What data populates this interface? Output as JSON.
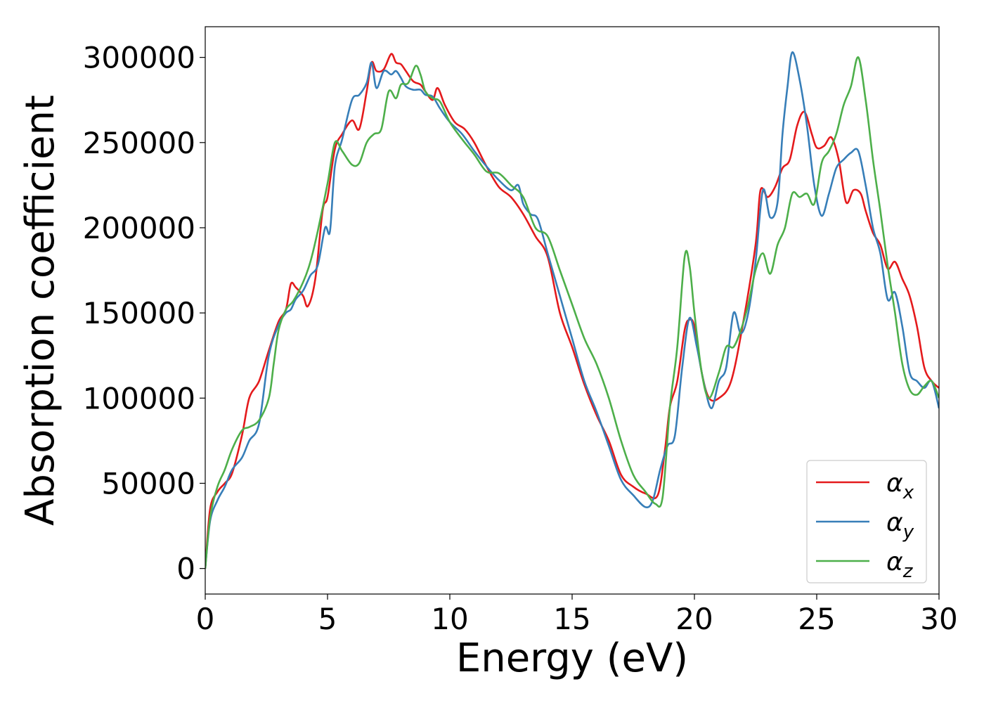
{
  "chart_data": {
    "type": "line",
    "title": "",
    "xlabel": "Energy (eV)",
    "ylabel": "Absorption coefficient",
    "xlim": [
      0,
      30
    ],
    "ylim": [
      -15000,
      318000
    ],
    "xticks": [
      0,
      5,
      10,
      15,
      20,
      25,
      30
    ],
    "yticks": [
      0,
      50000,
      100000,
      150000,
      200000,
      250000,
      300000
    ],
    "grid": false,
    "legend_position": "bottom-right",
    "series": [
      {
        "name": "αx",
        "label_base": "α",
        "label_sub": "x",
        "color": "#e41a1c",
        "x": [
          0,
          0.2,
          0.5,
          0.8,
          1.1,
          1.5,
          1.8,
          2.2,
          2.6,
          3.0,
          3.3,
          3.5,
          3.7,
          4.0,
          4.2,
          4.5,
          4.8,
          5.0,
          5.3,
          5.6,
          6.0,
          6.3,
          6.6,
          6.8,
          7.0,
          7.3,
          7.6,
          7.8,
          8.0,
          8.2,
          8.5,
          8.8,
          9.0,
          9.3,
          9.5,
          9.8,
          10.2,
          10.6,
          11.0,
          11.5,
          12.0,
          12.5,
          13.0,
          13.5,
          14.0,
          14.5,
          15.0,
          15.5,
          16.0,
          16.5,
          17.0,
          17.5,
          18.0,
          18.5,
          18.8,
          19.0,
          19.3,
          19.6,
          19.8,
          20.0,
          20.3,
          20.6,
          21.0,
          21.5,
          22.0,
          22.5,
          22.7,
          23.0,
          23.3,
          23.6,
          23.9,
          24.2,
          24.5,
          24.8,
          25.0,
          25.3,
          25.6,
          25.9,
          26.2,
          26.5,
          26.8,
          27.0,
          27.3,
          27.6,
          27.9,
          28.2,
          28.5,
          28.8,
          29.1,
          29.4,
          29.7,
          30.0
        ],
        "values": [
          0,
          35000,
          45000,
          50000,
          56000,
          78000,
          100000,
          110000,
          128000,
          145000,
          152000,
          167000,
          165000,
          160000,
          154000,
          170000,
          210000,
          218000,
          246000,
          255000,
          263000,
          258000,
          280000,
          297000,
          292000,
          293000,
          302000,
          297000,
          296000,
          292000,
          286000,
          284000,
          280000,
          275000,
          282000,
          272000,
          262000,
          258000,
          250000,
          236000,
          224000,
          218000,
          208000,
          195000,
          183000,
          150000,
          130000,
          108000,
          90000,
          75000,
          55000,
          48000,
          44000,
          43000,
          70000,
          95000,
          110000,
          140000,
          146000,
          142000,
          115000,
          100000,
          100000,
          110000,
          145000,
          190000,
          222000,
          218000,
          224000,
          235000,
          240000,
          260000,
          268000,
          255000,
          247000,
          248000,
          253000,
          240000,
          215000,
          222000,
          220000,
          210000,
          197000,
          190000,
          176000,
          180000,
          170000,
          160000,
          142000,
          118000,
          110000,
          106000
        ]
      },
      {
        "name": "αy",
        "label_base": "α",
        "label_sub": "y",
        "color": "#377eb8",
        "x": [
          0,
          0.2,
          0.5,
          0.8,
          1.1,
          1.5,
          1.8,
          2.2,
          2.6,
          3.0,
          3.3,
          3.5,
          3.7,
          4.0,
          4.3,
          4.6,
          4.9,
          5.1,
          5.3,
          5.6,
          6.0,
          6.3,
          6.6,
          6.8,
          7.0,
          7.3,
          7.6,
          7.8,
          8.0,
          8.2,
          8.5,
          8.8,
          9.0,
          9.3,
          9.6,
          10.0,
          10.5,
          11.0,
          11.5,
          12.0,
          12.5,
          12.8,
          13.0,
          13.3,
          13.6,
          14.0,
          14.5,
          15.0,
          15.5,
          16.0,
          16.5,
          17.0,
          17.5,
          18.0,
          18.3,
          18.6,
          18.9,
          19.2,
          19.5,
          19.8,
          20.1,
          20.4,
          20.7,
          21.0,
          21.3,
          21.6,
          21.9,
          22.2,
          22.5,
          22.8,
          23.1,
          23.4,
          23.6,
          23.8,
          24.0,
          24.3,
          24.6,
          24.9,
          25.2,
          25.5,
          25.8,
          26.1,
          26.4,
          26.7,
          27.0,
          27.3,
          27.6,
          27.9,
          28.2,
          28.5,
          28.8,
          29.1,
          29.4,
          29.7,
          30.0
        ],
        "values": [
          0,
          28000,
          40000,
          48000,
          58000,
          65000,
          75000,
          85000,
          125000,
          143000,
          150000,
          152000,
          158000,
          163000,
          172000,
          178000,
          200000,
          198000,
          236000,
          252000,
          275000,
          278000,
          285000,
          297000,
          282000,
          292000,
          290000,
          292000,
          288000,
          283000,
          281000,
          281000,
          278000,
          277000,
          270000,
          262000,
          255000,
          245000,
          236000,
          228000,
          222000,
          225000,
          214000,
          208000,
          205000,
          185000,
          160000,
          135000,
          110000,
          92000,
          72000,
          52000,
          43000,
          36000,
          40000,
          58000,
          72000,
          78000,
          118000,
          147000,
          130000,
          108000,
          94000,
          110000,
          118000,
          150000,
          138000,
          150000,
          180000,
          222000,
          206000,
          215000,
          255000,
          282000,
          303000,
          287000,
          260000,
          225000,
          207000,
          220000,
          235000,
          240000,
          244000,
          245000,
          225000,
          200000,
          185000,
          158000,
          162000,
          142000,
          115000,
          110000,
          106000,
          110000,
          94000
        ]
      },
      {
        "name": "αz",
        "label_base": "α",
        "label_sub": "z",
        "color": "#4daf4a",
        "x": [
          0,
          0.2,
          0.5,
          0.8,
          1.1,
          1.5,
          1.8,
          2.2,
          2.6,
          2.8,
          3.0,
          3.3,
          3.6,
          4.0,
          4.3,
          4.6,
          5.0,
          5.3,
          5.6,
          6.0,
          6.3,
          6.6,
          6.9,
          7.2,
          7.5,
          7.8,
          8.0,
          8.3,
          8.6,
          8.8,
          9.0,
          9.3,
          9.6,
          10.0,
          10.5,
          11.0,
          11.5,
          12.0,
          12.5,
          13.0,
          13.5,
          14.0,
          14.5,
          15.0,
          15.5,
          16.0,
          16.5,
          17.0,
          17.5,
          18.0,
          18.4,
          18.7,
          19.0,
          19.3,
          19.6,
          19.8,
          20.0,
          20.3,
          20.6,
          21.0,
          21.3,
          21.6,
          21.9,
          22.2,
          22.5,
          22.8,
          23.1,
          23.4,
          23.7,
          24.0,
          24.3,
          24.6,
          24.9,
          25.2,
          25.5,
          25.8,
          26.1,
          26.4,
          26.7,
          27.0,
          27.3,
          27.6,
          27.9,
          28.2,
          28.5,
          28.8,
          29.1,
          29.4,
          29.7,
          30.0
        ],
        "values": [
          0,
          30000,
          48000,
          58000,
          70000,
          81000,
          83000,
          87000,
          100000,
          120000,
          140000,
          152000,
          157000,
          168000,
          180000,
          198000,
          226000,
          250000,
          245000,
          237000,
          238000,
          250000,
          255000,
          258000,
          280000,
          276000,
          284000,
          285000,
          295000,
          290000,
          280000,
          276000,
          274000,
          262000,
          252000,
          243000,
          233000,
          232000,
          225000,
          218000,
          200000,
          195000,
          175000,
          155000,
          135000,
          120000,
          100000,
          75000,
          55000,
          45000,
          38000,
          42000,
          95000,
          130000,
          183000,
          178000,
          150000,
          115000,
          100000,
          115000,
          130000,
          130000,
          140000,
          155000,
          175000,
          185000,
          173000,
          190000,
          200000,
          220000,
          218000,
          220000,
          214000,
          238000,
          245000,
          255000,
          272000,
          283000,
          300000,
          275000,
          240000,
          210000,
          178000,
          150000,
          120000,
          105000,
          102000,
          107000,
          110000,
          100000
        ]
      }
    ]
  }
}
